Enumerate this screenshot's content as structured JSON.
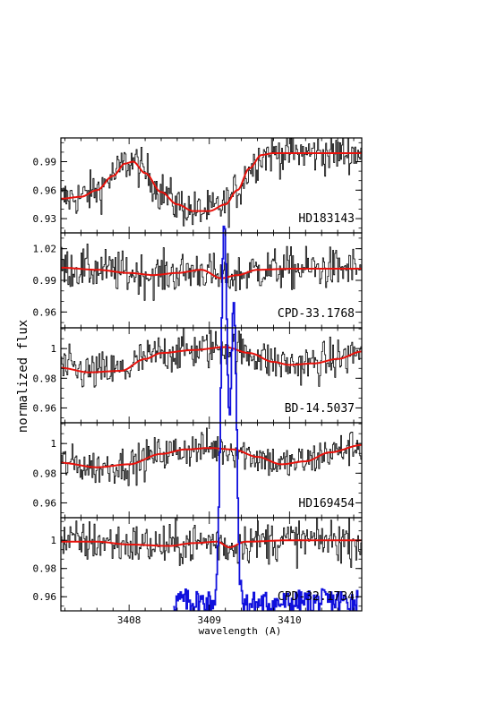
{
  "chart_data": {
    "type": "line",
    "xlabel": "wavelength (A)",
    "ylabel": "normalized flux",
    "xlim": [
      3407.15,
      3410.9
    ],
    "x_ticks": [
      3408,
      3409,
      3410
    ],
    "x_tick_labels": [
      "3408",
      "3409",
      "3410"
    ],
    "colors": {
      "observed": "#000000",
      "model": "#e8120c",
      "overlay": "#1010dd"
    },
    "panels": [
      {
        "label": "HD183143",
        "ylim": [
          0.915,
          1.015
        ],
        "y_ticks": [
          0.93,
          0.96,
          0.99
        ],
        "y_tick_labels": [
          "0.93",
          "0.96",
          "0.99"
        ],
        "noise": 0.014,
        "model": [
          [
            3407.15,
            0.951
          ],
          [
            3407.4,
            0.953
          ],
          [
            3407.6,
            0.96
          ],
          [
            3407.8,
            0.975
          ],
          [
            3407.95,
            0.988
          ],
          [
            3408.05,
            0.99
          ],
          [
            3408.2,
            0.978
          ],
          [
            3408.4,
            0.958
          ],
          [
            3408.6,
            0.945
          ],
          [
            3408.8,
            0.938
          ],
          [
            3409.0,
            0.938
          ],
          [
            3409.2,
            0.945
          ],
          [
            3409.35,
            0.96
          ],
          [
            3409.5,
            0.983
          ],
          [
            3409.65,
            0.997
          ],
          [
            3409.8,
            0.999
          ],
          [
            3410.3,
            0.999
          ],
          [
            3410.9,
            0.999
          ]
        ]
      },
      {
        "label": "CPD-33.1768",
        "ylim": [
          0.945,
          1.035
        ],
        "y_ticks": [
          0.96,
          0.99,
          1.02
        ],
        "y_tick_labels": [
          "0.96",
          "0.99",
          "1.02"
        ],
        "noise": 0.013,
        "model": [
          [
            3407.15,
            1.002
          ],
          [
            3407.6,
            1.0
          ],
          [
            3408.0,
            0.997
          ],
          [
            3408.3,
            0.995
          ],
          [
            3408.6,
            0.997
          ],
          [
            3408.9,
            1.0
          ],
          [
            3409.15,
            0.992
          ],
          [
            3409.35,
            0.995
          ],
          [
            3409.6,
            1.0
          ],
          [
            3410.0,
            1.001
          ],
          [
            3410.4,
            1.001
          ],
          [
            3410.9,
            1.001
          ]
        ]
      },
      {
        "label": "BD-14.5037",
        "ylim": [
          0.95,
          1.014
        ],
        "y_ticks": [
          0.96,
          0.98,
          1
        ],
        "y_tick_labels": [
          "0.96",
          "0.98",
          "1"
        ],
        "noise": 0.009,
        "model": [
          [
            3407.15,
            0.987
          ],
          [
            3407.5,
            0.984
          ],
          [
            3407.9,
            0.985
          ],
          [
            3408.2,
            0.993
          ],
          [
            3408.4,
            0.997
          ],
          [
            3408.8,
            0.999
          ],
          [
            3409.2,
            1.001
          ],
          [
            3409.5,
            0.997
          ],
          [
            3409.8,
            0.991
          ],
          [
            3410.0,
            0.989
          ],
          [
            3410.3,
            0.99
          ],
          [
            3410.6,
            0.993
          ],
          [
            3410.9,
            0.998
          ]
        ]
      },
      {
        "label": "HD169454",
        "ylim": [
          0.95,
          1.014
        ],
        "y_ticks": [
          0.96,
          0.98,
          1
        ],
        "y_tick_labels": [
          "0.96",
          "0.98",
          "1"
        ],
        "noise": 0.008,
        "model": [
          [
            3407.15,
            0.987
          ],
          [
            3407.6,
            0.984
          ],
          [
            3408.0,
            0.986
          ],
          [
            3408.4,
            0.993
          ],
          [
            3408.7,
            0.996
          ],
          [
            3409.0,
            0.997
          ],
          [
            3409.3,
            0.996
          ],
          [
            3409.6,
            0.991
          ],
          [
            3409.9,
            0.986
          ],
          [
            3410.2,
            0.988
          ],
          [
            3410.5,
            0.994
          ],
          [
            3410.9,
            0.999
          ]
        ]
      },
      {
        "label": "CPD-32.1734",
        "ylim": [
          0.95,
          1.016
        ],
        "y_ticks": [
          0.96,
          0.98,
          1
        ],
        "y_tick_labels": [
          "0.96",
          "0.98",
          "1"
        ],
        "noise": 0.01,
        "model": [
          [
            3407.15,
            0.999
          ],
          [
            3407.6,
            0.999
          ],
          [
            3408.0,
            0.997
          ],
          [
            3408.5,
            0.996
          ],
          [
            3408.8,
            0.998
          ],
          [
            3409.1,
            0.999
          ],
          [
            3409.25,
            0.995
          ],
          [
            3409.45,
            0.999
          ],
          [
            3410.0,
            1.0
          ],
          [
            3410.9,
            1.0
          ]
        ]
      }
    ],
    "overlay_spectrum": {
      "peaks": [
        [
          3409.18,
          1.0,
          0.04
        ],
        [
          3409.3,
          0.78,
          0.035
        ]
      ],
      "baseline_panel5": [
        [
          3408.55,
          0.957
        ],
        [
          3409.6,
          0.955
        ],
        [
          3410.85,
          0.957
        ]
      ]
    }
  }
}
